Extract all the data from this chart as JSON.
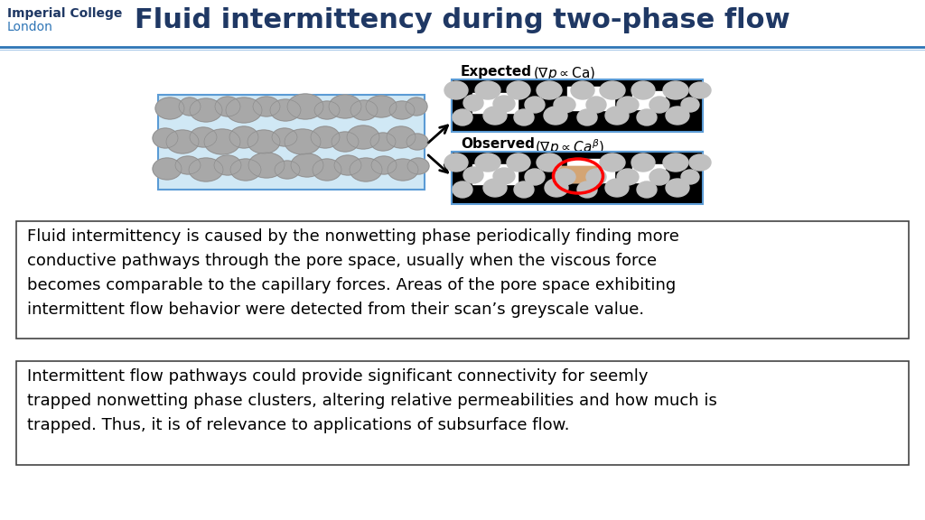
{
  "title": "Fluid intermittency during two-phase flow",
  "title_color": "#1F3864",
  "title_fontsize": 22,
  "ic_london_line1": "Imperial College",
  "ic_london_line2": "London",
  "ic_color": "#1F3864",
  "ic_color2": "#2E75B6",
  "header_line_color1": "#2E75B6",
  "header_line_color2": "#A8C8E8",
  "bg_color": "#FFFFFF",
  "box1_text": "Fluid intermittency is caused by the nonwetting phase periodically finding more\nconductive pathways through the pore space, usually when the viscous force\nbecomes comparable to the capillary forces. Areas of the pore space exhibiting\nintermittent flow behavior were detected from their scan’s greyscale value.",
  "box2_text": "Intermittent flow pathways could provide significant connectivity for seemly\ntrapped nonwetting phase clusters, altering relative permeabilities and how much is\ntrapped. Thus, it is of relevance to applications of subsurface flow.",
  "expected_label": "Expected",
  "observed_label": "Observed",
  "text_fontsize": 13,
  "label_fontsize": 11
}
